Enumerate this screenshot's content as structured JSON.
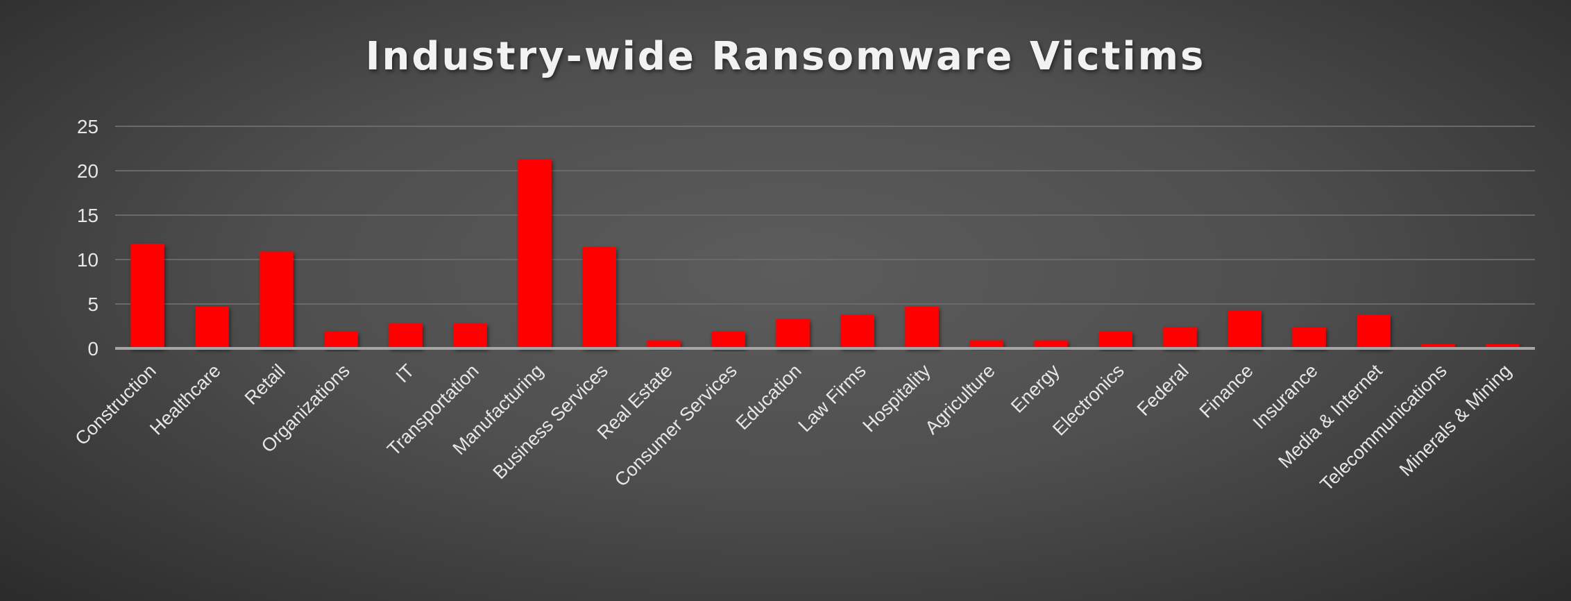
{
  "chart_data": {
    "type": "bar",
    "title": "Industry-wide Ransomware Victims",
    "xlabel": "",
    "ylabel": "",
    "ylim": [
      0,
      25
    ],
    "yticks": [
      0,
      5,
      10,
      15,
      20,
      25
    ],
    "grid": true,
    "bar_color": "#ff0000",
    "categories": [
      "Construction",
      "Healthcare",
      "Retail",
      "Organizations",
      "IT",
      "Transportation",
      "Manufacturing",
      "Business Services",
      "Real Estate",
      "Consumer Services",
      "Education",
      "Law Firms",
      "Hospitality",
      "Agriculture",
      "Energy",
      "Electronics",
      "Federal",
      "Finance",
      "Insurance",
      "Media & Internet",
      "Telecommunications",
      "Minerals & Mining"
    ],
    "values": [
      11.8,
      4.7,
      10.9,
      1.9,
      2.8,
      2.8,
      21.3,
      11.4,
      0.9,
      1.9,
      3.3,
      3.8,
      4.7,
      0.9,
      0.9,
      1.9,
      2.4,
      4.3,
      2.4,
      3.8,
      0.5,
      0.5
    ]
  }
}
